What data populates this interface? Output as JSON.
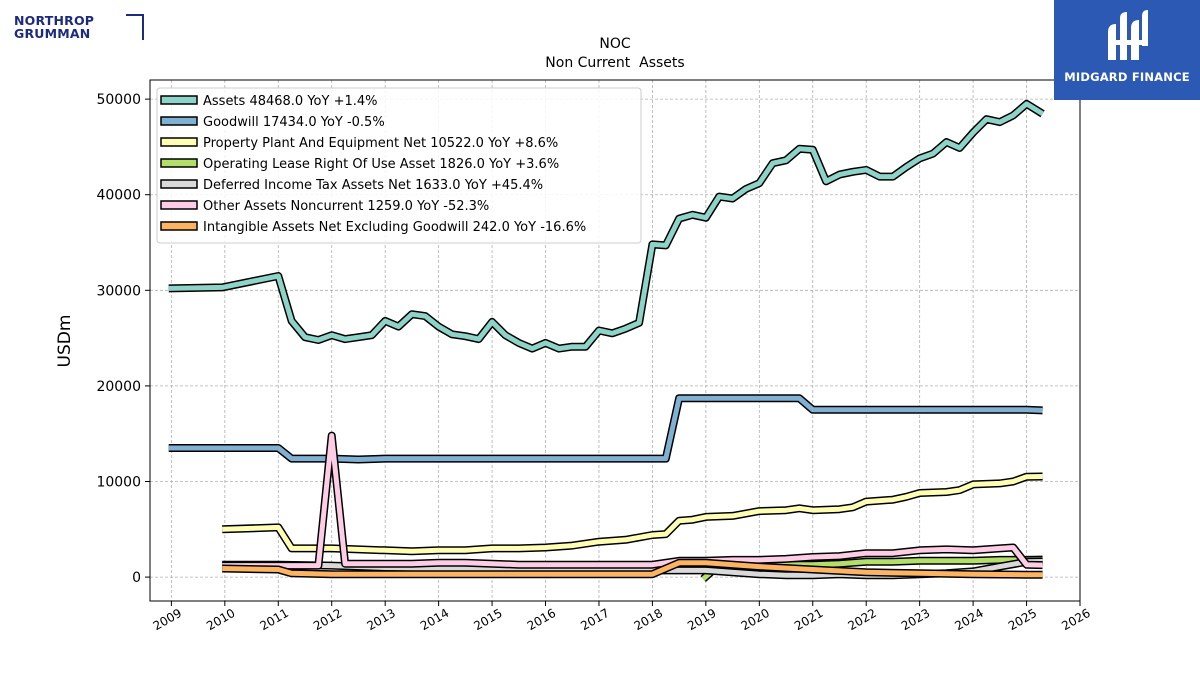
{
  "logos": {
    "left_line1": "NORTHROP",
    "left_line2": "GRUMMAN",
    "right_text": "MIDGARD FINANCE"
  },
  "colors": {
    "brand_left": "#1d2b7d",
    "brand_right": "#2c59b3"
  },
  "chart_data": {
    "type": "line",
    "title": "NOC",
    "subtitle": "Non Current  Assets",
    "ylabel": "USDm",
    "xlabel": "",
    "xlim": [
      2008.6,
      2026.0
    ],
    "ylim": [
      -2500,
      52000
    ],
    "x_ticks": [
      "2009",
      "2010",
      "2011",
      "2012",
      "2013",
      "2014",
      "2015",
      "2016",
      "2017",
      "2018",
      "2019",
      "2020",
      "2021",
      "2022",
      "2023",
      "2024",
      "2025",
      "2026"
    ],
    "y_ticks": [
      "0",
      "10000",
      "20000",
      "30000",
      "40000",
      "50000"
    ],
    "grid": true,
    "legend_position": "top-left",
    "series": [
      {
        "name": "Assets",
        "legend": "Assets  48468.0 YoY +1.4%",
        "color": "#8dd3c7",
        "points": [
          [
            2008.95,
            30200
          ],
          [
            2009.95,
            30300
          ],
          [
            2011.0,
            31500
          ],
          [
            2011.25,
            26800
          ],
          [
            2011.5,
            25100
          ],
          [
            2011.75,
            24800
          ],
          [
            2012.0,
            25300
          ],
          [
            2012.25,
            24900
          ],
          [
            2012.5,
            25100
          ],
          [
            2012.75,
            25300
          ],
          [
            2013.0,
            26800
          ],
          [
            2013.25,
            26200
          ],
          [
            2013.5,
            27500
          ],
          [
            2013.75,
            27300
          ],
          [
            2014.0,
            26200
          ],
          [
            2014.25,
            25400
          ],
          [
            2014.5,
            25200
          ],
          [
            2014.75,
            24900
          ],
          [
            2015.0,
            26700
          ],
          [
            2015.25,
            25300
          ],
          [
            2015.5,
            24500
          ],
          [
            2015.75,
            23900
          ],
          [
            2016.0,
            24500
          ],
          [
            2016.25,
            23900
          ],
          [
            2016.5,
            24100
          ],
          [
            2016.75,
            24100
          ],
          [
            2017.0,
            25800
          ],
          [
            2017.25,
            25500
          ],
          [
            2017.5,
            26000
          ],
          [
            2017.75,
            26600
          ],
          [
            2018.0,
            34800
          ],
          [
            2018.25,
            34700
          ],
          [
            2018.5,
            37500
          ],
          [
            2018.75,
            37900
          ],
          [
            2019.0,
            37600
          ],
          [
            2019.25,
            39800
          ],
          [
            2019.5,
            39600
          ],
          [
            2019.75,
            40600
          ],
          [
            2020.0,
            41200
          ],
          [
            2020.25,
            43300
          ],
          [
            2020.5,
            43600
          ],
          [
            2020.75,
            44800
          ],
          [
            2021.0,
            44700
          ],
          [
            2021.25,
            41400
          ],
          [
            2021.5,
            42100
          ],
          [
            2021.75,
            42400
          ],
          [
            2022.0,
            42600
          ],
          [
            2022.25,
            41900
          ],
          [
            2022.5,
            41900
          ],
          [
            2022.75,
            42900
          ],
          [
            2023.0,
            43800
          ],
          [
            2023.25,
            44300
          ],
          [
            2023.5,
            45500
          ],
          [
            2023.75,
            44900
          ],
          [
            2024.0,
            46500
          ],
          [
            2024.25,
            47900
          ],
          [
            2024.5,
            47600
          ],
          [
            2024.75,
            48300
          ],
          [
            2025.0,
            49500
          ],
          [
            2025.3,
            48468
          ]
        ]
      },
      {
        "name": "Goodwill",
        "legend": "Goodwill  17434.0 YoY -0.5%",
        "color": "#80b1d3",
        "points": [
          [
            2008.95,
            13500
          ],
          [
            2009.95,
            13500
          ],
          [
            2011.0,
            13500
          ],
          [
            2011.25,
            12400
          ],
          [
            2011.5,
            12400
          ],
          [
            2012.0,
            12400
          ],
          [
            2012.5,
            12300
          ],
          [
            2013.0,
            12400
          ],
          [
            2014.0,
            12400
          ],
          [
            2015.0,
            12400
          ],
          [
            2016.0,
            12400
          ],
          [
            2017.0,
            12400
          ],
          [
            2017.75,
            12400
          ],
          [
            2018.0,
            12400
          ],
          [
            2018.25,
            12400
          ],
          [
            2018.5,
            18700
          ],
          [
            2019.0,
            18700
          ],
          [
            2019.5,
            18700
          ],
          [
            2020.0,
            18700
          ],
          [
            2020.75,
            18700
          ],
          [
            2021.0,
            17500
          ],
          [
            2021.5,
            17500
          ],
          [
            2022.0,
            17500
          ],
          [
            2023.0,
            17500
          ],
          [
            2024.0,
            17500
          ],
          [
            2025.0,
            17500
          ],
          [
            2025.3,
            17434
          ]
        ]
      },
      {
        "name": "Property Plant And Equipment Net",
        "legend": "Property Plant And Equipment Net  10522.0 YoY +8.6%",
        "color": "#ffffb3",
        "points": [
          [
            2009.95,
            5000
          ],
          [
            2011.0,
            5200
          ],
          [
            2011.25,
            3000
          ],
          [
            2011.75,
            3000
          ],
          [
            2012.0,
            3000
          ],
          [
            2012.5,
            2900
          ],
          [
            2013.0,
            2800
          ],
          [
            2013.5,
            2700
          ],
          [
            2014.0,
            2800
          ],
          [
            2014.5,
            2800
          ],
          [
            2015.0,
            3000
          ],
          [
            2015.5,
            3000
          ],
          [
            2016.0,
            3100
          ],
          [
            2016.5,
            3300
          ],
          [
            2017.0,
            3700
          ],
          [
            2017.5,
            3900
          ],
          [
            2018.0,
            4400
          ],
          [
            2018.25,
            4500
          ],
          [
            2018.5,
            5900
          ],
          [
            2018.75,
            6000
          ],
          [
            2019.0,
            6300
          ],
          [
            2019.5,
            6400
          ],
          [
            2020.0,
            6900
          ],
          [
            2020.5,
            7000
          ],
          [
            2020.75,
            7200
          ],
          [
            2021.0,
            7000
          ],
          [
            2021.5,
            7100
          ],
          [
            2021.75,
            7300
          ],
          [
            2022.0,
            7900
          ],
          [
            2022.5,
            8100
          ],
          [
            2022.75,
            8400
          ],
          [
            2023.0,
            8800
          ],
          [
            2023.5,
            8900
          ],
          [
            2023.75,
            9100
          ],
          [
            2024.0,
            9700
          ],
          [
            2024.5,
            9800
          ],
          [
            2024.75,
            10000
          ],
          [
            2025.0,
            10500
          ],
          [
            2025.3,
            10522
          ]
        ]
      },
      {
        "name": "Operating Lease Right Of Use Asset",
        "legend": "Operating Lease Right Of Use Asset  1826.0 YoY +3.6%",
        "color": "#b3de69",
        "points": [
          [
            2018.95,
            -200
          ],
          [
            2019.25,
            1300
          ],
          [
            2019.5,
            1300
          ],
          [
            2020.0,
            1300
          ],
          [
            2020.5,
            1300
          ],
          [
            2021.0,
            1300
          ],
          [
            2021.5,
            1400
          ],
          [
            2022.0,
            1600
          ],
          [
            2022.5,
            1600
          ],
          [
            2023.0,
            1700
          ],
          [
            2023.5,
            1700
          ],
          [
            2024.0,
            1700
          ],
          [
            2024.5,
            1800
          ],
          [
            2025.0,
            1800
          ],
          [
            2025.3,
            1826
          ]
        ]
      },
      {
        "name": "Deferred Income Tax Assets Net",
        "legend": "Deferred Income Tax Assets Net  1633.0 YoY +45.4%",
        "color": "#d9d9d9",
        "points": [
          [
            2009.95,
            1300
          ],
          [
            2011.0,
            1300
          ],
          [
            2012.0,
            1200
          ],
          [
            2013.0,
            1000
          ],
          [
            2014.0,
            900
          ],
          [
            2015.0,
            800
          ],
          [
            2016.0,
            700
          ],
          [
            2017.0,
            700
          ],
          [
            2018.0,
            700
          ],
          [
            2019.0,
            700
          ],
          [
            2020.0,
            300
          ],
          [
            2020.5,
            200
          ],
          [
            2021.0,
            200
          ],
          [
            2021.5,
            300
          ],
          [
            2022.0,
            200
          ],
          [
            2022.5,
            200
          ],
          [
            2023.0,
            300
          ],
          [
            2023.5,
            400
          ],
          [
            2024.0,
            600
          ],
          [
            2024.5,
            1100
          ],
          [
            2025.0,
            1600
          ],
          [
            2025.3,
            1633
          ]
        ]
      },
      {
        "name": "Other Assets Noncurrent",
        "legend": "Other Assets Noncurrent  1259.0 YoY -52.3%",
        "color": "#fccde5",
        "points": [
          [
            2009.95,
            1200
          ],
          [
            2011.0,
            1200
          ],
          [
            2011.5,
            1200
          ],
          [
            2011.75,
            1200
          ],
          [
            2012.0,
            14800
          ],
          [
            2012.25,
            1400
          ],
          [
            2012.5,
            1400
          ],
          [
            2013.0,
            1400
          ],
          [
            2013.5,
            1400
          ],
          [
            2014.0,
            1500
          ],
          [
            2014.5,
            1500
          ],
          [
            2015.0,
            1400
          ],
          [
            2015.5,
            1300
          ],
          [
            2016.0,
            1300
          ],
          [
            2016.5,
            1300
          ],
          [
            2017.0,
            1300
          ],
          [
            2017.5,
            1300
          ],
          [
            2018.0,
            1300
          ],
          [
            2018.5,
            1700
          ],
          [
            2019.0,
            1700
          ],
          [
            2019.5,
            1800
          ],
          [
            2020.0,
            1800
          ],
          [
            2020.5,
            1900
          ],
          [
            2021.0,
            2100
          ],
          [
            2021.5,
            2200
          ],
          [
            2022.0,
            2500
          ],
          [
            2022.5,
            2500
          ],
          [
            2023.0,
            2800
          ],
          [
            2023.5,
            2900
          ],
          [
            2024.0,
            2800
          ],
          [
            2024.5,
            3000
          ],
          [
            2024.75,
            3100
          ],
          [
            2025.0,
            1300
          ],
          [
            2025.3,
            1259
          ]
        ]
      },
      {
        "name": "Intangible Assets Net Excluding Goodwill",
        "legend": "Intangible Assets Net Excluding Goodwill  242.0 YoY -16.6%",
        "color": "#fdb462",
        "points": [
          [
            2009.95,
            900
          ],
          [
            2011.0,
            800
          ],
          [
            2011.25,
            400
          ],
          [
            2012.0,
            300
          ],
          [
            2013.0,
            300
          ],
          [
            2014.0,
            300
          ],
          [
            2015.0,
            300
          ],
          [
            2016.0,
            300
          ],
          [
            2017.0,
            300
          ],
          [
            2018.0,
            300
          ],
          [
            2018.5,
            1500
          ],
          [
            2019.0,
            1500
          ],
          [
            2020.0,
            1100
          ],
          [
            2021.0,
            800
          ],
          [
            2022.0,
            500
          ],
          [
            2023.0,
            400
          ],
          [
            2024.0,
            300
          ],
          [
            2025.0,
            250
          ],
          [
            2025.3,
            242
          ]
        ]
      }
    ]
  }
}
